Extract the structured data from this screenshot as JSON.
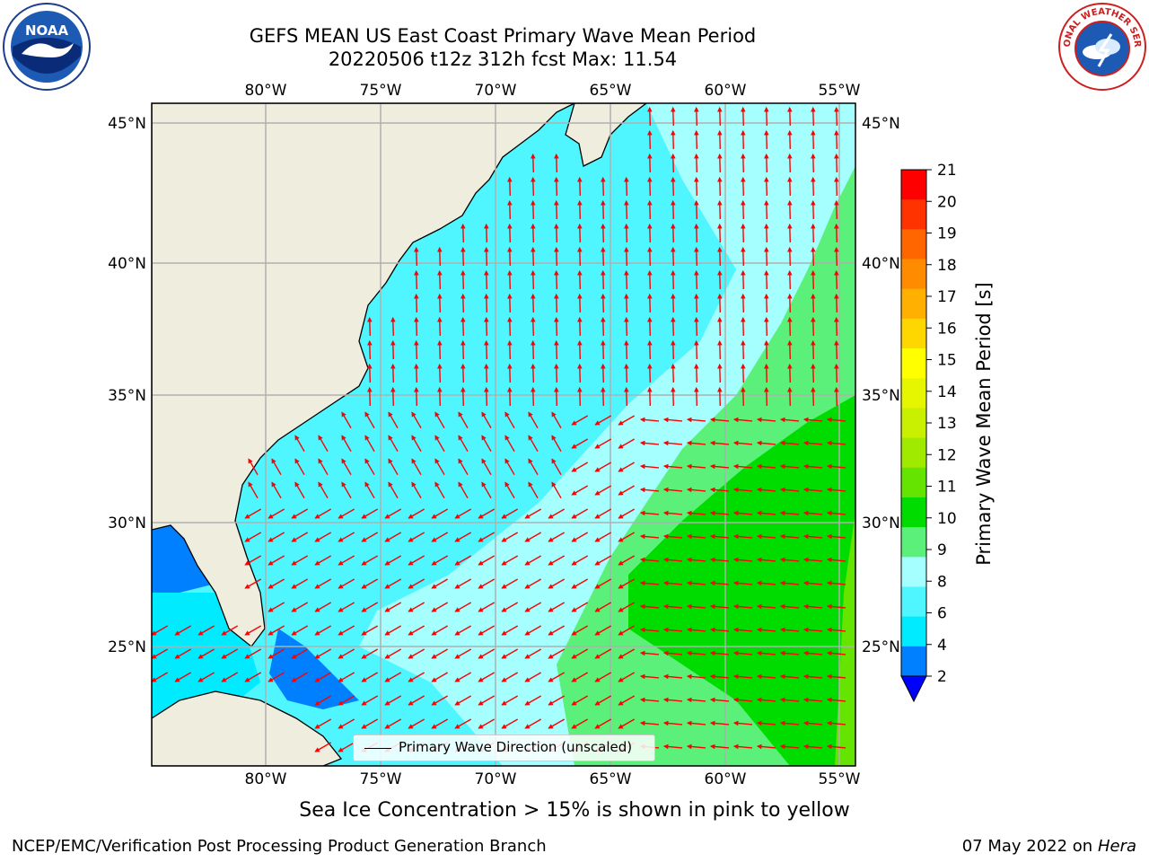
{
  "header": {
    "title_line1": "GEFS MEAN US East Coast Primary Wave Mean Period",
    "title_line2": "20220506 t12z 312h fcst   Max: 11.54"
  },
  "logos": {
    "noaa": {
      "text": "NOAA",
      "icon": "noaa-logo"
    },
    "nws": {
      "text": "NATIONAL WEATHER SERVICE",
      "icon": "nws-logo"
    }
  },
  "map": {
    "lon_ticks": [
      "80°W",
      "75°W",
      "70°W",
      "65°W",
      "60°W",
      "55°W"
    ],
    "lat_ticks": [
      "45°N",
      "40°N",
      "35°N",
      "30°N",
      "25°N"
    ],
    "land_color": "#efedde",
    "vector_color": "#ff0000",
    "grid_color": "#b0b0b0"
  },
  "legend": {
    "label": "Primary Wave Direction (unscaled)"
  },
  "colorbar": {
    "label": "Primary Wave Mean Period [s]",
    "ticks": [
      "21",
      "20",
      "19",
      "18",
      "17",
      "16",
      "15",
      "14",
      "13",
      "12",
      "11",
      "10",
      "9",
      "8",
      "6",
      "4",
      "2"
    ],
    "colors": [
      "#ff0000",
      "#ff3300",
      "#ff6600",
      "#ff8c00",
      "#ffb000",
      "#ffd700",
      "#ffff00",
      "#e6f500",
      "#c8f000",
      "#a0ea00",
      "#64e400",
      "#00dc00",
      "#5af07a",
      "#a6ffff",
      "#4ff5ff",
      "#00ebff",
      "#0080ff"
    ],
    "under_color": "#0000ff"
  },
  "subtitle": "Sea Ice Concentration > 15% is shown in pink to yellow",
  "footer": {
    "left": "NCEP/EMC/Verification Post Processing Product Generation Branch",
    "right_date": "07 May 2022 on",
    "right_host": "Hera"
  }
}
